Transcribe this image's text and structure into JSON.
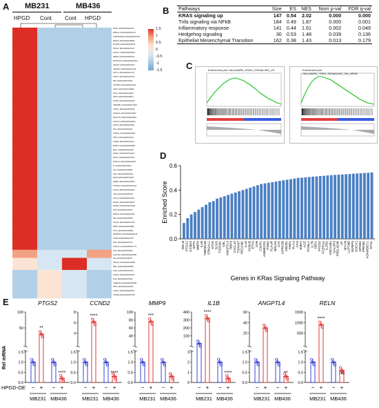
{
  "panel_labels": {
    "a": "A",
    "b": "B",
    "c": "C",
    "d": "D",
    "e": "E"
  },
  "heatmap": {
    "cell_lines": [
      "MB231",
      "MB436"
    ],
    "conditions": [
      "HPGD",
      "Cont",
      "Cont",
      "HPGD"
    ],
    "legend_ticks": [
      "1.5",
      "1",
      "0.5",
      "0",
      "-0.5",
      "-1",
      "-1.5"
    ],
    "genes": [
      "HPGD | ENSG00000164120",
      "EHBGL2 | ENSG00000162715",
      "STMN4/MAOB | ENSG00000227369",
      "PRMT6 | ENSG00000198890",
      "SLC6S9 | ENSG00000196132",
      "HIF1AL | ENSG00000227447",
      "SLPI4L1 | ENSG00000163477",
      "PRRSD | ENSG00000264711",
      "MTHFD1L2 | ENSG00000226212",
      "RRAIS2 | ENSG00000026271",
      "HGF4BL2 | ENSG00000211102",
      "XRCT1 | ENSG00000107116",
      "TNRX1 | ENSG00000148734",
      "MPN | ENSG00000118115",
      "TSXIDBA | ENSG00000203312",
      "FAP3L | ENSG00000128655",
      "SOX1 | ENSG00000144567",
      "DSHN | ENSG00000189117",
      "NHCB1 | ENSG00000183118",
      "OMISHIB1 | ENSG00000170515",
      "CHKAL | ENSG00000183228",
      "ADORD1 | ENSG00000178487",
      "PEGL7R1 | ENSG00000168801",
      "SASHY4 | ENSG00000140813",
      "LDHC2 | ENSG00000136262",
      "TEC | ENSG00000201003",
      "CDSRL1 | ENSG00000138311",
      "HPPC | ENSG00000163342",
      "LAMR3 | ENSG00000211104",
      "PRMTO | ENSG00000188888",
      "ERCL | ENSG00000164282",
      "LENCO | ENSG00000134317",
      "MGCL2 | ENSG00000107211",
      "PORCLK | ENSG00000163182",
      "IL6 | ENSG00000146649",
      "ILR1 | ENSG00000115594",
      "LRAT | ENSG00000156221",
      "SECN | ENSG00000130203",
      "HERB4 | ENSG00000151893",
      "TNFRSF1 | ENSG00000144013",
      "CTAG2 | ENSG00000126890",
      "LZS3 | ENSG00000200041",
      "CXCL2 | ENSG00000109813",
      "ENCN1 | ENSG00000100017",
      "HWKR2 | ENSG00000136188",
      "PHR | ENSG00000146674",
      "EFNA5 | ENSG00000184349",
      "IRS2 | ENSG00000185950",
      "PTGS2 | ENSG00000073756",
      "MMP9 | ENSG00000100985",
      "CCL2 | ENSG00000108691",
      "SERPINA3 | ENSG00000196136",
      "FOSB | ENSG00000125740",
      "CPE | ENSG00000109472",
      "ANGPTL4 | ENSG00000167772",
      "ACE | ENSG00000159640",
      "ALDH1A1 | ENSG00000165092",
      "DCS | ENSG00000151577",
      "HMGA2 | ENSG00000149948",
      "RELN | ENSG00000189056",
      "ACE2 | ENSG00000130234",
      "CCND2 | ENSG00000118971",
      "IL1B | ENSG00000125538",
      "TMEM158 | ENSG00000249992",
      "SPP1 | ENSG00000118785",
      "GLRX3 | ENSG00000108010",
      "ATP2B2 | ENSG00000157087"
    ]
  },
  "gsea_table": {
    "headers": [
      "Pathways",
      "Size",
      "ES",
      "NES",
      "Nom p-val",
      "FDR q-val"
    ],
    "rows": [
      [
        "KRAS signaling up",
        "147",
        "0.54",
        "2.02",
        "0.000",
        "0.000"
      ],
      [
        "Tnfa signaling via NFkB",
        "184",
        "0.49",
        "1.87",
        "0.000",
        "0.001"
      ],
      [
        "Inflammatory response",
        "141",
        "0.44",
        "1.61",
        "0.002",
        "0.049"
      ],
      [
        "Hedgehog signaling",
        "30",
        "0.53",
        "1.48",
        "0.039",
        "0.136"
      ],
      [
        "Epithelial Mesenchymal Transition",
        "162",
        "0.38",
        "1.43",
        "0.013",
        "0.179"
      ]
    ]
  },
  "enrichment_plots": [
    {
      "title": "Enrichment plot: HALLMARK_KRAS_SIGNALING_UP"
    },
    {
      "title": "Enrichment plot: HALLMARK_TNFA_SIGNALING_VIA_NFKB"
    }
  ],
  "chart_data": [
    {
      "type": "bar",
      "ylabel": "Enriched Score",
      "xlabel": "Genes in KRas Signaling Pathway",
      "ylim": [
        0,
        0.6
      ],
      "yticks": [
        "0.0",
        "0.2",
        "0.4",
        "0.6"
      ],
      "color": "#4a7fc4",
      "categories": [
        "RELN",
        "PTGS2",
        "CCND2",
        "SPP1",
        "MMP9",
        "IL1B",
        "TMEM158",
        "ST6GAL1",
        "ETV5",
        "SCG5",
        "TSPAN1",
        "CBL",
        "ANGPTL4",
        "RBP4",
        "CXCL10",
        "TSPAN7",
        "PECAM1",
        "IL10",
        "SCN1B",
        "ETV4",
        "CFB",
        "C3AR1",
        "AMMECR1",
        "ITGB2",
        "PLAUR",
        "NR1H4",
        "CA2",
        "GPRC5B",
        "ABCB1",
        "ANO1",
        "PLAU",
        "CFH",
        "EMP1",
        "ACE",
        "ITGBL1",
        "IL7R",
        "FBP1",
        "PTCD2",
        "FCER1G",
        "IL2RG",
        "HSD11B1",
        "GALNT3",
        "PRELID3B",
        "LIF",
        "MYCN",
        "LAPTM5",
        "IGFBP3",
        "DOCK2",
        "EPHB2",
        "PRDM1",
        "ADAMDEC1",
        "ETS1"
      ],
      "values": [
        0.13,
        0.17,
        0.2,
        0.22,
        0.24,
        0.26,
        0.28,
        0.3,
        0.31,
        0.33,
        0.34,
        0.35,
        0.36,
        0.37,
        0.38,
        0.39,
        0.4,
        0.41,
        0.42,
        0.43,
        0.44,
        0.45,
        0.455,
        0.46,
        0.465,
        0.47,
        0.475,
        0.48,
        0.485,
        0.49,
        0.495,
        0.5,
        0.502,
        0.505,
        0.507,
        0.51,
        0.512,
        0.515,
        0.517,
        0.52,
        0.522,
        0.524,
        0.526,
        0.528,
        0.53,
        0.532,
        0.534,
        0.536,
        0.538,
        0.54,
        0.542,
        0.545
      ]
    }
  ],
  "panel_e": {
    "ylabel": "Rel mRNA",
    "row_label": "HPGD-OE",
    "minus": "−",
    "plus": "+",
    "cell_lines": [
      "MB231",
      "MB436"
    ],
    "genes": [
      {
        "name": "PTGS2",
        "ymax": "100",
        "ticks_top": [
          "100",
          "50"
        ],
        "ticks_bottom": [
          "1.5",
          "1.0",
          "0.5",
          "0.0"
        ],
        "sig_mb231": "**",
        "sig_mb436": "****",
        "means": [
          1.0,
          30,
          1.0,
          0.2
        ]
      },
      {
        "name": "CCND2",
        "ymax": "8",
        "ticks_top": [
          "8",
          "6",
          "4"
        ],
        "ticks_bottom": [
          "1.5",
          "1.0",
          "0.5",
          "0.0"
        ],
        "sig_mb231": "****",
        "sig_mb436": "****",
        "means": [
          1.0,
          5.5,
          1.0,
          0.3
        ]
      },
      {
        "name": "MMP9",
        "ymax": "100",
        "ticks_top": [
          "100",
          "80",
          "60",
          "40"
        ],
        "ticks_bottom": [
          "1.5",
          "1.0",
          "0.5",
          "0.0"
        ],
        "sig_mb231": "***",
        "sig_mb436": "",
        "means": [
          1.0,
          70,
          1.0,
          0.3
        ]
      },
      {
        "name": "IL1B",
        "ymax": "400",
        "ticks_top": [
          "400",
          "300",
          "200",
          "100"
        ],
        "ticks_bottom": [
          "3",
          "2",
          "1",
          "0"
        ],
        "sig_mb231": "****",
        "sig_mb436": "****",
        "means": [
          2.0,
          320,
          1.0,
          0.2
        ]
      },
      {
        "name": "ANGPTL4",
        "ymax": "60",
        "ticks_top": [
          "60",
          "40",
          "20"
        ],
        "ticks_bottom": [
          "1.5",
          "1.0",
          "0.5",
          "0.0"
        ],
        "sig_mb231": "",
        "sig_mb436": "**",
        "means": [
          1.0,
          30,
          1.0,
          0.3
        ]
      },
      {
        "name": "RELN",
        "ymax": "1500",
        "ticks_top": [
          "1500",
          "1000",
          "500"
        ],
        "ticks_bottom": [
          "1.5",
          "1.0",
          "0.5",
          "0.0"
        ],
        "sig_mb231": "****",
        "sig_mb436": "ns",
        "means": [
          1.0,
          900,
          1.0,
          0.6
        ]
      }
    ]
  }
}
